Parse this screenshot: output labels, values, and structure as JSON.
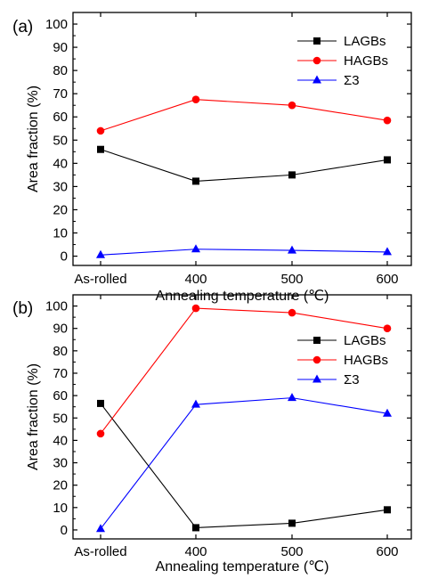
{
  "chart_data": [
    {
      "type": "line",
      "panel_label": "(a)",
      "categories": [
        "As-rolled",
        "400",
        "500",
        "600"
      ],
      "xlabel": "Annealing temperature (℃)",
      "ylabel": "Area fraction (%)",
      "ylim": [
        -4,
        105
      ],
      "yticks": [
        0,
        10,
        20,
        30,
        40,
        50,
        60,
        70,
        80,
        90,
        100
      ],
      "legend_position": "top-right",
      "series": [
        {
          "name": "LAGBs",
          "color": "#000000",
          "marker": "square",
          "values": [
            46,
            32.3,
            35,
            41.5
          ]
        },
        {
          "name": "HAGBs",
          "color": "#ff0000",
          "marker": "circle",
          "values": [
            54,
            67.5,
            65,
            58.5
          ]
        },
        {
          "name": "Σ3",
          "color": "#0000ff",
          "marker": "triangle",
          "values": [
            0.5,
            3,
            2.5,
            1.8
          ]
        }
      ]
    },
    {
      "type": "line",
      "panel_label": "(b)",
      "categories": [
        "As-rolled",
        "400",
        "500",
        "600"
      ],
      "xlabel": "Annealing temperature (℃)",
      "ylabel": "Area fraction (%)",
      "ylim": [
        -4,
        105
      ],
      "yticks": [
        0,
        10,
        20,
        30,
        40,
        50,
        60,
        70,
        80,
        90,
        100
      ],
      "legend_position": "right",
      "series": [
        {
          "name": "LAGBs",
          "color": "#000000",
          "marker": "square",
          "values": [
            56.5,
            1,
            3,
            9
          ]
        },
        {
          "name": "HAGBs",
          "color": "#ff0000",
          "marker": "circle",
          "values": [
            43,
            99,
            97,
            90
          ]
        },
        {
          "name": "Σ3",
          "color": "#0000ff",
          "marker": "triangle",
          "values": [
            0.5,
            56,
            59,
            52
          ]
        }
      ]
    }
  ]
}
